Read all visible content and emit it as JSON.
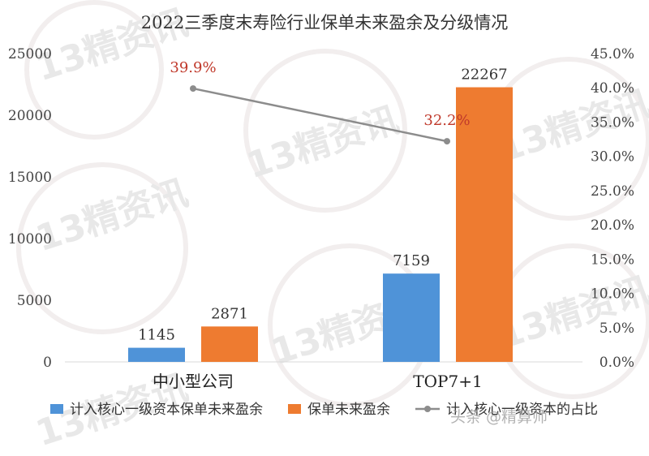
{
  "chart_data": {
    "type": "bar",
    "title": "2022三季度末寿险行业保单未来盈余及分级情况",
    "categories": [
      "中小型公司",
      "TOP7+1"
    ],
    "series": [
      {
        "name": "计入核心一级资本保单未来盈余",
        "type": "bar",
        "axis": "left",
        "values": [
          1145,
          7159
        ],
        "color": "#4f93d8"
      },
      {
        "name": "保单未来盈余",
        "type": "bar",
        "axis": "left",
        "values": [
          2871,
          22267
        ],
        "color": "#ee7b30"
      },
      {
        "name": "计入核心一级资本的占比",
        "type": "line",
        "axis": "right",
        "values": [
          39.9,
          32.2
        ],
        "labels": [
          "39.9%",
          "32.2%"
        ],
        "color": "#8c8c8c"
      }
    ],
    "bar_labels": [
      [
        "1145",
        "7159"
      ],
      [
        "2871",
        "22267"
      ]
    ],
    "y_left": {
      "ylim": [
        0,
        25000
      ],
      "ticks": [
        "0",
        "5000",
        "10000",
        "15000",
        "20000",
        "25000"
      ]
    },
    "y_right": {
      "ylim": [
        0,
        45
      ],
      "ticks": [
        "0.0%",
        "5.0%",
        "10.0%",
        "15.0%",
        "20.0%",
        "25.0%",
        "30.0%",
        "35.0%",
        "40.0%",
        "45.0%"
      ]
    },
    "legend_position": "bottom",
    "grid": false
  },
  "watermark": {
    "logo_text": "13精资讯",
    "caption": "头条 @精算师"
  }
}
